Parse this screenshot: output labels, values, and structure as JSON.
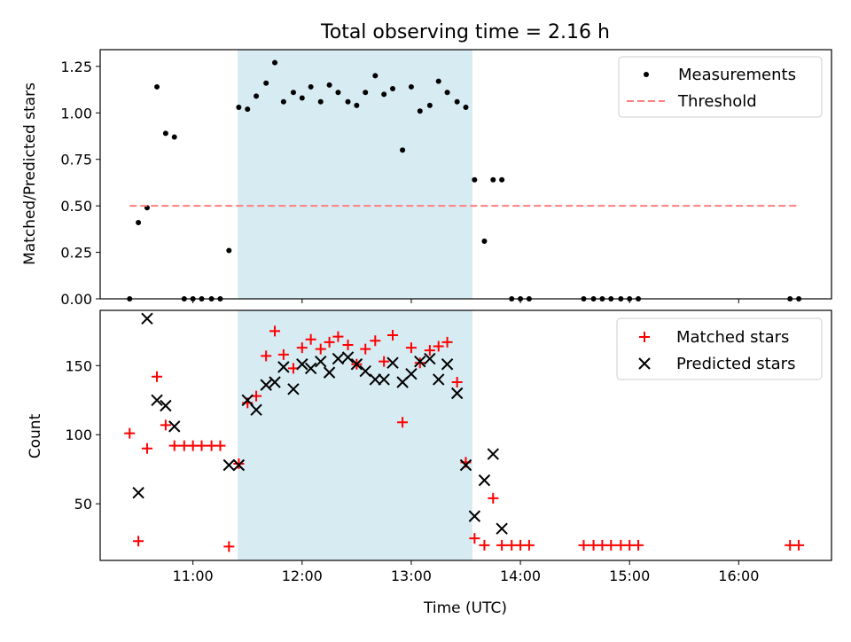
{
  "chart_data": [
    {
      "type": "scatter",
      "title": "Total observing time = 2.16 h",
      "xlabel": "",
      "ylabel": "Matched/Predicted stars",
      "ylim": [
        0,
        1.34
      ],
      "xlim": [
        10.15,
        16.85
      ],
      "xticks": [
        11,
        12,
        13,
        14,
        15,
        16
      ],
      "yticks": [
        0.0,
        0.25,
        0.5,
        0.75,
        1.0,
        1.25
      ],
      "ytick_labels": [
        "0.00",
        "0.25",
        "0.50",
        "0.75",
        "1.00",
        "1.25"
      ],
      "shaded_span": [
        11.41,
        13.56
      ],
      "legend": "top-right",
      "series": [
        {
          "name": "Measurements",
          "style": "dot",
          "color": "#000000",
          "x": [
            10.42,
            10.5,
            10.58,
            10.67,
            10.75,
            10.83,
            10.92,
            11.0,
            11.08,
            11.17,
            11.25,
            11.33,
            11.42,
            11.5,
            11.58,
            11.67,
            11.75,
            11.83,
            11.92,
            12.0,
            12.08,
            12.17,
            12.25,
            12.33,
            12.42,
            12.5,
            12.58,
            12.67,
            12.75,
            12.83,
            12.92,
            13.0,
            13.08,
            13.17,
            13.25,
            13.33,
            13.42,
            13.5,
            13.58,
            13.67,
            13.75,
            13.83,
            13.92,
            14.0,
            14.08,
            14.58,
            14.67,
            14.75,
            14.83,
            14.92,
            15.0,
            15.08,
            16.47,
            16.55
          ],
          "y": [
            0.0,
            0.41,
            0.49,
            1.14,
            0.89,
            0.87,
            0.0,
            0.0,
            0.0,
            0.0,
            0.0,
            0.26,
            1.03,
            1.02,
            1.09,
            1.16,
            1.27,
            1.06,
            1.11,
            1.08,
            1.14,
            1.06,
            1.15,
            1.11,
            1.06,
            1.04,
            1.11,
            1.2,
            1.1,
            1.13,
            0.8,
            1.14,
            1.01,
            1.04,
            1.17,
            1.11,
            1.06,
            1.03,
            0.64,
            0.31,
            0.64,
            0.64,
            0.0,
            0.0,
            0.0,
            0.0,
            0.0,
            0.0,
            0.0,
            0.0,
            0.0,
            0.0,
            0.0,
            0.0
          ]
        },
        {
          "name": "Threshold",
          "style": "dashed",
          "color": "#ff7f7f",
          "x": [
            10.42,
            16.55
          ],
          "y": [
            0.5,
            0.5
          ]
        }
      ]
    },
    {
      "type": "scatter",
      "title": "",
      "xlabel": "Time (UTC)",
      "ylabel": "Count",
      "ylim": [
        9,
        190
      ],
      "xlim": [
        10.15,
        16.85
      ],
      "xticks": [
        11,
        12,
        13,
        14,
        15,
        16
      ],
      "xtick_labels": [
        "11:00",
        "12:00",
        "13:00",
        "14:00",
        "15:00",
        "16:00"
      ],
      "yticks": [
        50,
        100,
        150
      ],
      "ytick_labels": [
        "50",
        "100",
        "150"
      ],
      "shaded_span": [
        11.41,
        13.56
      ],
      "legend": "top-right",
      "series": [
        {
          "name": "Matched stars",
          "style": "plus",
          "color": "#ff0000",
          "x": [
            10.42,
            10.5,
            10.58,
            10.67,
            10.75,
            10.83,
            10.92,
            11.0,
            11.08,
            11.17,
            11.25,
            11.33,
            11.42,
            11.5,
            11.58,
            11.67,
            11.75,
            11.83,
            11.92,
            12.0,
            12.08,
            12.17,
            12.25,
            12.33,
            12.42,
            12.5,
            12.58,
            12.67,
            12.75,
            12.83,
            12.92,
            13.0,
            13.08,
            13.17,
            13.25,
            13.33,
            13.42,
            13.5,
            13.58,
            13.67,
            13.75,
            13.83,
            13.92,
            14.0,
            14.08,
            14.58,
            14.67,
            14.75,
            14.83,
            14.92,
            15.0,
            15.08,
            16.47,
            16.55
          ],
          "y": [
            101,
            23,
            90,
            142,
            107,
            92,
            92,
            92,
            92,
            92,
            92,
            19,
            79,
            123,
            128,
            157,
            175,
            158,
            148,
            163,
            169,
            162,
            167,
            171,
            165,
            151,
            162,
            168,
            153,
            172,
            109,
            163,
            152,
            161,
            164,
            167,
            138,
            80,
            25,
            20,
            54,
            20,
            20,
            20,
            20,
            20,
            20,
            20,
            20,
            20,
            20,
            20,
            20,
            20
          ]
        },
        {
          "name": "Predicted stars",
          "style": "x",
          "color": "#000000",
          "x": [
            10.5,
            10.58,
            10.67,
            10.75,
            10.83,
            11.33,
            11.42,
            11.5,
            11.58,
            11.67,
            11.75,
            11.83,
            11.92,
            12.0,
            12.08,
            12.17,
            12.25,
            12.33,
            12.42,
            12.5,
            12.58,
            12.67,
            12.75,
            12.83,
            12.92,
            13.0,
            13.08,
            13.17,
            13.25,
            13.33,
            13.42,
            13.5,
            13.58,
            13.67,
            13.75,
            13.83
          ],
          "y": [
            58,
            184,
            125,
            121,
            106,
            78,
            78,
            125,
            118,
            136,
            138,
            149,
            133,
            151,
            148,
            153,
            145,
            155,
            156,
            151,
            146,
            140,
            140,
            152,
            138,
            144,
            153,
            155,
            140,
            151,
            130,
            78,
            41,
            67,
            86,
            32
          ]
        }
      ]
    }
  ]
}
